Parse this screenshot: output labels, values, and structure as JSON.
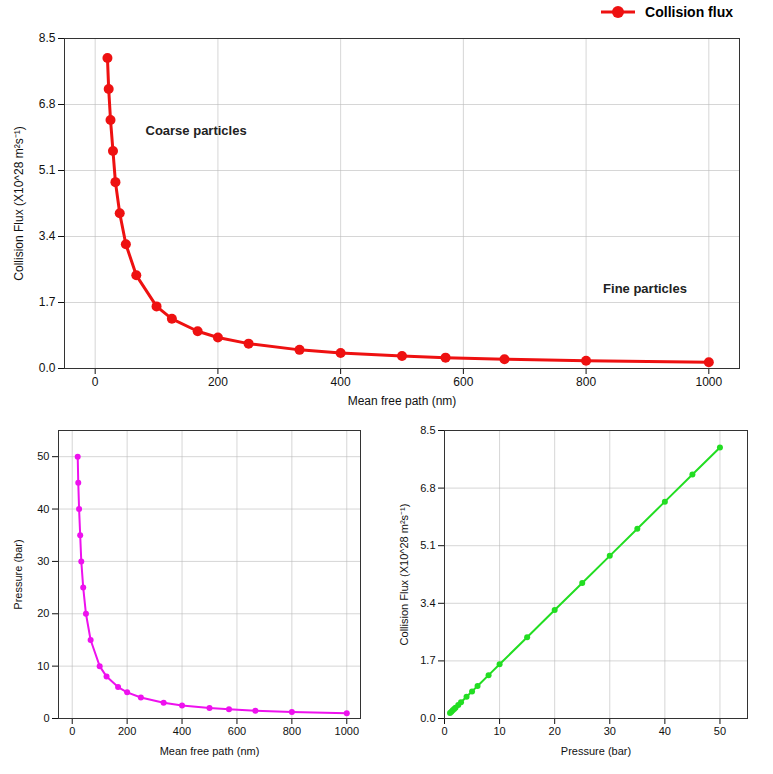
{
  "chart_data": [
    {
      "type": "line",
      "xlabel": "Mean free path (nm)",
      "ylabel": "Collision Flux (X10^28 m²s⁻¹)",
      "x": [
        20,
        22,
        25,
        29,
        33,
        40,
        50,
        67,
        100,
        125,
        167,
        200,
        250,
        333,
        400,
        500,
        571,
        667,
        800,
        1000
      ],
      "series": [
        {
          "name": "Collision flux",
          "color": "#ee1111",
          "marker": "circle",
          "values": [
            8.0,
            7.2,
            6.4,
            5.6,
            4.8,
            4.0,
            3.2,
            2.4,
            1.6,
            1.28,
            0.96,
            0.8,
            0.64,
            0.48,
            0.4,
            0.32,
            0.28,
            0.24,
            0.2,
            0.16
          ]
        }
      ],
      "xlim": [
        -50,
        1050
      ],
      "xticks": [
        0,
        200,
        400,
        600,
        800,
        1000
      ],
      "ylim": [
        0,
        8.5
      ],
      "yticks": [
        {
          "value": 0,
          "label": "0.0"
        },
        1.7,
        3.4,
        5.1,
        6.8,
        8.5
      ],
      "grid": true,
      "legend": "top-right",
      "annotations": [
        {
          "text": "Coarse particles"
        },
        {
          "text": "Fine particles"
        }
      ]
    },
    {
      "type": "line",
      "xlabel": "Mean free path (nm)",
      "ylabel": "Pressure (bar)",
      "x": [
        20,
        22,
        25,
        29,
        33,
        40,
        50,
        67,
        100,
        125,
        167,
        200,
        250,
        333,
        400,
        500,
        571,
        667,
        800,
        1000
      ],
      "series": [
        {
          "color": "#ee11ee",
          "marker": "circle",
          "values": [
            50,
            45,
            40,
            35,
            30,
            25,
            20,
            15,
            10,
            8,
            6,
            5,
            4,
            3,
            2.5,
            2,
            1.75,
            1.5,
            1.25,
            1
          ]
        }
      ],
      "xlim": [
        -50,
        1050
      ],
      "xticks": [
        0,
        200,
        400,
        600,
        800,
        1000
      ],
      "ylim": [
        0,
        55
      ],
      "yticks": [
        0,
        10,
        20,
        30,
        40,
        50
      ],
      "grid": true
    },
    {
      "type": "line",
      "xlabel": "Pressure (bar)",
      "ylabel": "Collision Flux (X10^28 m²s⁻¹)",
      "x": [
        50,
        45,
        40,
        35,
        30,
        25,
        20,
        15,
        10,
        8,
        6,
        5,
        4,
        3,
        2.5,
        2,
        1.75,
        1.5,
        1.25,
        1
      ],
      "series": [
        {
          "color": "#22dd22",
          "marker": "circle",
          "values": [
            8.0,
            7.2,
            6.4,
            5.6,
            4.8,
            4.0,
            3.2,
            2.4,
            1.6,
            1.28,
            0.96,
            0.8,
            0.64,
            0.48,
            0.4,
            0.32,
            0.28,
            0.24,
            0.2,
            0.16
          ]
        }
      ],
      "xlim": [
        0,
        55
      ],
      "xticks": [
        0,
        10,
        20,
        30,
        40,
        50
      ],
      "ylim": [
        0,
        8.5
      ],
      "yticks": [
        {
          "value": 0,
          "label": "0.0"
        },
        1.7,
        3.4,
        5.1,
        6.8,
        8.5
      ],
      "grid": true
    }
  ]
}
